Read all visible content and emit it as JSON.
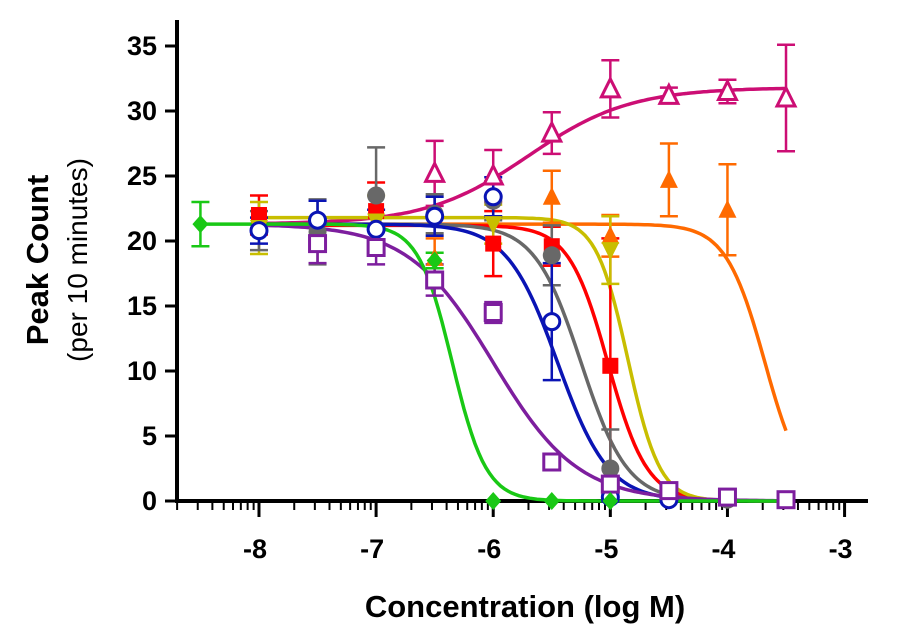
{
  "chart_data": {
    "type": "scatter",
    "xlabel": "Concentration (log M)",
    "ylabel": "Peak Count",
    "ylabel_sub": "(per 10 minutes)",
    "xlim": [
      -8.7,
      -2.8
    ],
    "ylim": [
      0,
      37
    ],
    "x_ticks": [
      -8,
      -7,
      -6,
      -5,
      -4,
      -3
    ],
    "x_tick_labels": [
      "-8",
      "-7",
      "-6",
      "-5",
      "-4",
      "-3"
    ],
    "y_ticks": [
      0,
      5,
      10,
      15,
      20,
      25,
      30,
      35
    ],
    "y_tick_labels": [
      "0",
      "5",
      "10",
      "15",
      "20",
      "25",
      "30",
      "35"
    ],
    "grid": false,
    "legend": "none",
    "series": [
      {
        "color": "#cc0e74",
        "marker": "triangle-open",
        "x": [
          -6.5,
          -6.0,
          -5.5,
          -5.0,
          -4.5,
          -4.0,
          -3.5
        ],
        "y": [
          25.2,
          25.0,
          28.3,
          31.7,
          31.2,
          31.5,
          31.0
        ],
        "err": [
          2.5,
          2.0,
          1.6,
          2.2,
          0.6,
          0.9,
          4.1
        ],
        "fit": {
          "bottom": 21.3,
          "top": 31.8,
          "logec50": -5.7,
          "hill": 1.0,
          "from": -8.0,
          "to": -3.5
        }
      },
      {
        "color": "#ff6a00",
        "marker": "triangle",
        "x": [
          -6.5,
          -5.5,
          -5.0,
          -4.5,
          -4.0
        ],
        "y": [
          18.7,
          23.4,
          20.4,
          24.7,
          22.4
        ],
        "err": [
          1.5,
          2.0,
          1.6,
          2.8,
          3.5
        ],
        "fit": {
          "top": 21.3,
          "bottom": 0,
          "logec50": -3.68,
          "hill": 2.6,
          "from": -8.0,
          "to": -3.5
        }
      },
      {
        "color": "#ff0000",
        "marker": "square",
        "x": [
          -8.0,
          -7.0,
          -6.0,
          -5.5,
          -5.0
        ],
        "y": [
          22.0,
          22.3,
          19.8,
          19.6,
          10.4
        ],
        "err": [
          1.5,
          2.2,
          2.5,
          1.5,
          9.8
        ],
        "fit": {
          "top": 21.2,
          "bottom": 0,
          "logec50": -5.02,
          "hill": 2.6,
          "from": -8.0,
          "to": -3.5
        }
      },
      {
        "color": "#c8be00",
        "marker": "triangle-down",
        "x": [
          -8.0,
          -7.0,
          -6.0,
          -5.0
        ],
        "y": [
          21.0,
          21.5,
          21.3,
          19.3
        ],
        "err": [
          2.0,
          2.0,
          1.5,
          2.6
        ],
        "fit": {
          "top": 21.8,
          "bottom": 0,
          "logec50": -4.85,
          "hill": 3.2,
          "from": -8.0,
          "to": -3.5
        }
      },
      {
        "color": "#686868",
        "marker": "circle",
        "x": [
          -8.0,
          -7.5,
          -7.0,
          -6.5,
          -6.0,
          -5.5,
          -5.0,
          -4.5,
          -4.0,
          -3.5
        ],
        "y": [
          20.8,
          20.7,
          23.5,
          22.1,
          23.1,
          18.9,
          2.5,
          0.3,
          0.1,
          0.1
        ],
        "err": [
          1.5,
          2.5,
          3.7,
          1.5,
          1.5,
          2.3,
          3.0,
          0.3,
          0.3,
          0.3
        ],
        "fit": {
          "top": 21.3,
          "bottom": 0,
          "logec50": -5.25,
          "hill": 2.2,
          "from": -8.0,
          "to": -3.5
        }
      },
      {
        "color": "#0a14b4",
        "marker": "circle-open",
        "x": [
          -8.0,
          -7.5,
          -7.0,
          -6.5,
          -6.0,
          -5.5,
          -5.0,
          -4.5
        ],
        "y": [
          20.8,
          21.6,
          20.9,
          21.9,
          23.4,
          13.8,
          0.3,
          0.1
        ],
        "err": [
          1.0,
          1.5,
          1.5,
          1.5,
          1.5,
          4.5,
          0.5,
          0.3
        ],
        "fit": {
          "top": 21.3,
          "bottom": 0,
          "logec50": -5.45,
          "hill": 2.0,
          "from": -8.0,
          "to": -3.5
        }
      },
      {
        "color": "#7d1e9e",
        "marker": "square-open",
        "x": [
          -7.5,
          -7.0,
          -6.5,
          -6.0,
          -5.5,
          -5.0,
          -4.5,
          -4.0,
          -3.5
        ],
        "y": [
          19.8,
          19.5,
          17.0,
          14.5,
          3.0,
          1.3,
          0.8,
          0.3,
          0.1
        ],
        "err": [
          1.5,
          1.3,
          1.2,
          0.8,
          0.5,
          0.5,
          0.4,
          0.3,
          0.3
        ],
        "fit": {
          "top": 21.3,
          "bottom": 0,
          "logec50": -6.0,
          "hill": 1.2,
          "from": -8.0,
          "to": -3.5
        }
      },
      {
        "color": "#19c815",
        "marker": "diamond",
        "x": [
          -8.5,
          -6.5,
          -6.0,
          -5.5,
          -5.0
        ],
        "y": [
          21.3,
          18.5,
          0.0,
          0.0,
          0.0
        ],
        "err": [
          1.7,
          0.6,
          0,
          0,
          0
        ],
        "fit": {
          "top": 21.3,
          "bottom": 0,
          "logec50": -6.35,
          "hill": 3.0,
          "from": -8.5,
          "to": -3.5
        }
      }
    ]
  }
}
